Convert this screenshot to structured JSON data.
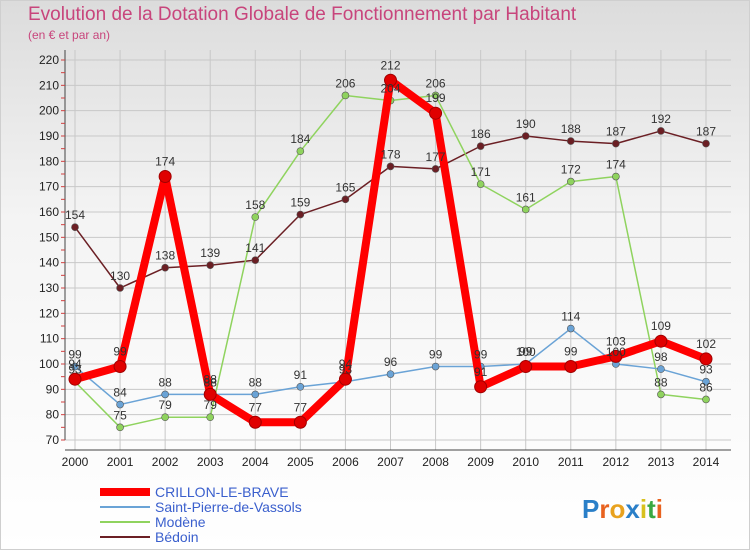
{
  "chart_data": {
    "type": "line",
    "title": "Evolution de la Dotation Globale de Fonctionnement par Habitant",
    "subtitle": "(en € et par an)",
    "xlabel": "",
    "ylabel": "",
    "ylim": [
      70,
      220
    ],
    "y_ticks": [
      70,
      80,
      90,
      100,
      110,
      120,
      130,
      140,
      150,
      160,
      170,
      180,
      190,
      200,
      210,
      220
    ],
    "x": [
      "2000",
      "2001",
      "2002",
      "2003",
      "2004",
      "2005",
      "2006",
      "2007",
      "2008",
      "2009",
      "2010",
      "2011",
      "2012",
      "2013",
      "2014"
    ],
    "grid": true,
    "legend": "bottom-left",
    "series": [
      {
        "name": "Bédoin",
        "color": "#6b1f24",
        "values": [
          154,
          130,
          138,
          139,
          141,
          159,
          165,
          178,
          177,
          186,
          190,
          188,
          187,
          192,
          187
        ]
      },
      {
        "name": "Modène",
        "color": "#8fd35e",
        "values": [
          93,
          75,
          79,
          79,
          158,
          184,
          206,
          204,
          206,
          171,
          161,
          172,
          174,
          88,
          86
        ]
      },
      {
        "name": "Saint-Pierre-de-Vassols",
        "color": "#6aa3d6",
        "values": [
          99,
          84,
          88,
          88,
          88,
          91,
          93,
          96,
          99,
          99,
          100,
          114,
          100,
          98,
          93
        ]
      },
      {
        "name": "CRILLON-LE-BRAVE",
        "color": "#ff0000",
        "values": [
          94,
          99,
          174,
          88,
          77,
          77,
          94,
          212,
          199,
          91,
          99,
          99,
          103,
          109,
          102
        ]
      }
    ],
    "legend_order": [
      "CRILLON-LE-BRAVE",
      "Saint-Pierre-de-Vassols",
      "Modène",
      "Bédoin"
    ]
  },
  "brand": {
    "text": "Proxiti"
  }
}
